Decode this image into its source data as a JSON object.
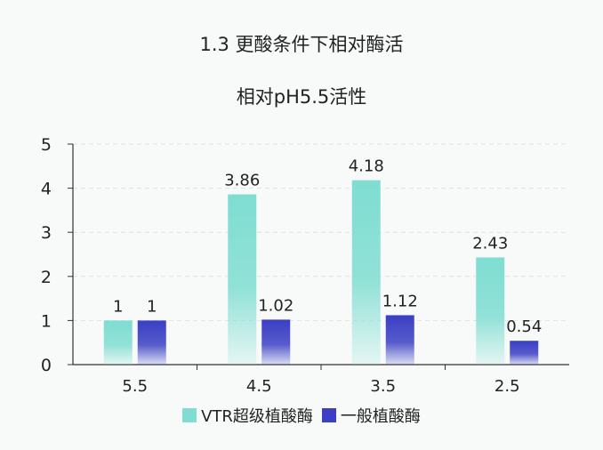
{
  "chart_data": {
    "type": "bar",
    "title": "1.3 更酸条件下相对酶活",
    "subtitle": "相对pH5.5活性",
    "categories": [
      "5.5",
      "4.5",
      "3.5",
      "2.5"
    ],
    "series": [
      {
        "name": "VTR超级植酸酶",
        "color": "#7fddd1",
        "values": [
          1,
          3.86,
          4.18,
          2.43
        ],
        "labels": [
          "1",
          "3.86",
          "4.18",
          "2.43"
        ]
      },
      {
        "name": "一般植酸酶",
        "color": "#3a3fc4",
        "values": [
          1,
          1.02,
          1.12,
          0.54
        ],
        "labels": [
          "1",
          "1.02",
          "1.12",
          "0.54"
        ]
      }
    ],
    "ylim": [
      0,
      5
    ],
    "yticks": [
      "0",
      "1",
      "2",
      "3",
      "4",
      "5"
    ],
    "grid": true,
    "legend_position": "bottom"
  }
}
